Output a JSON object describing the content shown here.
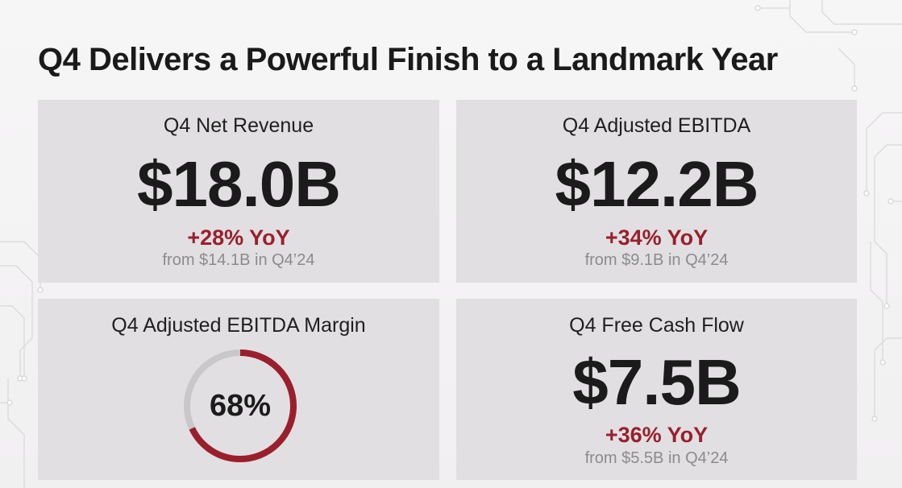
{
  "title": "Q4 Delivers a Powerful Finish to a Landmark Year",
  "colors": {
    "accent": "#9a1f2c",
    "card_bg": "#e1dfe1",
    "muted": "#8b8b8d",
    "gauge_track": "#c9c7c9"
  },
  "cards": {
    "revenue": {
      "label": "Q4 Net Revenue",
      "value": "$18.0B",
      "growth": "+28% YoY",
      "prior": "from $14.1B in Q4’24"
    },
    "ebitda": {
      "label": "Q4 Adjusted EBITDA",
      "value": "$12.2B",
      "growth": "+34% YoY",
      "prior": "from $9.1B in Q4’24"
    },
    "margin": {
      "label": "Q4 Adjusted EBITDA Margin",
      "value_text": "68%",
      "percent": 68
    },
    "fcf": {
      "label": "Q4 Free Cash Flow",
      "value": "$7.5B",
      "growth": "+36% YoY",
      "prior": "from $5.5B in Q4’24"
    }
  }
}
